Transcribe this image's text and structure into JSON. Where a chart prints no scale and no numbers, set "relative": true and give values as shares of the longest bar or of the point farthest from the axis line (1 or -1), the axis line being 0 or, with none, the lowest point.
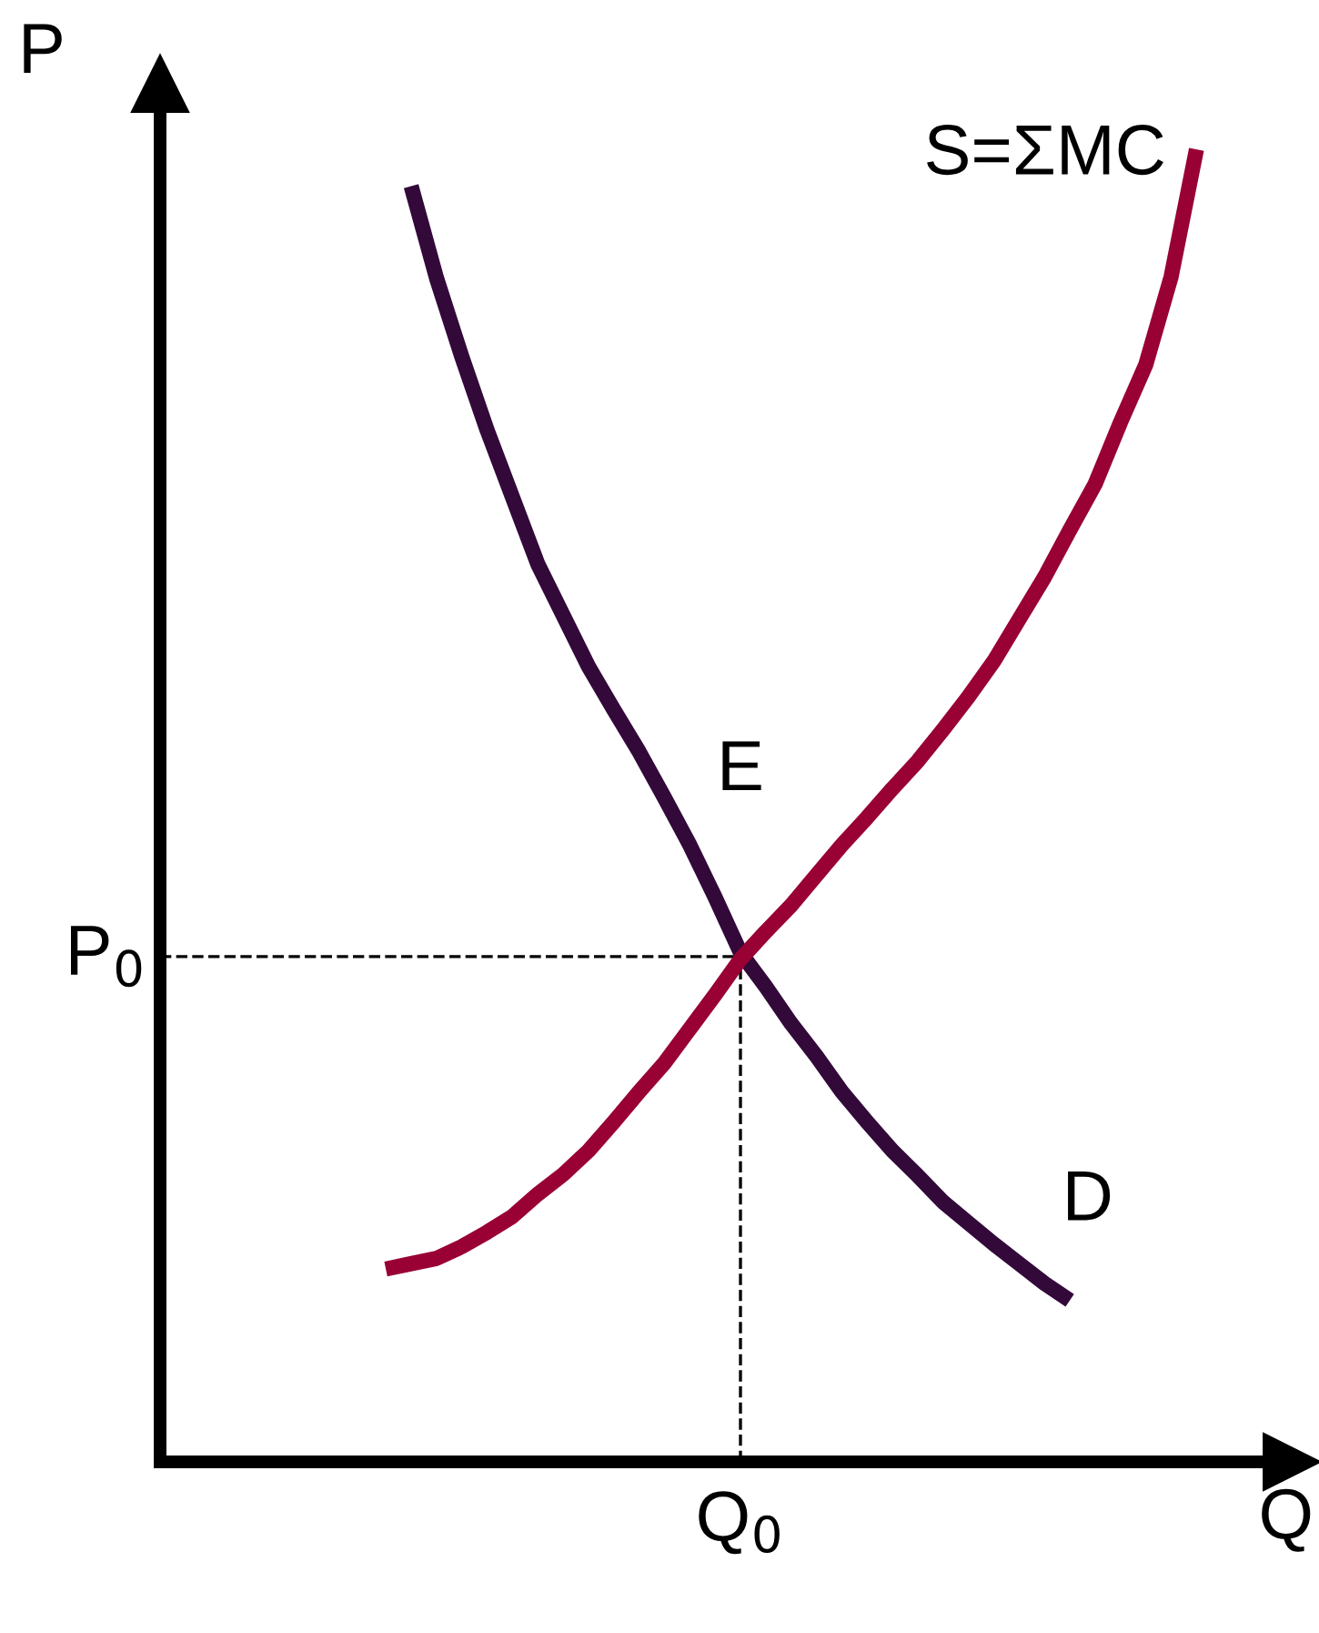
{
  "chart_data": {
    "type": "line",
    "relative": true,
    "xlabel": "Q",
    "ylabel": "P",
    "categories": [
      null,
      null,
      null,
      null,
      null,
      null,
      null,
      null,
      null,
      null,
      null,
      null,
      null,
      null,
      null,
      null,
      null,
      null,
      null,
      null,
      null,
      null,
      null,
      null,
      null,
      null,
      null,
      null,
      null,
      null,
      null,
      null,
      null
    ],
    "series": [
      {
        "name": "D",
        "color": "#33093a",
        "values": [
          null,
          0.972,
          0.902,
          0.842,
          0.786,
          0.735,
          0.684,
          0.645,
          0.606,
          0.573,
          0.541,
          0.506,
          0.47,
          0.43,
          0.388,
          0.362,
          0.334,
          0.309,
          0.282,
          0.259,
          0.237,
          0.218,
          0.198,
          0.182,
          0.166,
          0.151,
          0.136,
          0.123,
          null,
          null,
          null,
          null,
          null
        ]
      },
      {
        "name": "S=ΣMC",
        "color": "#990033",
        "values": [
          0.147,
          0.151,
          0.155,
          0.164,
          0.175,
          0.187,
          0.204,
          0.219,
          0.237,
          0.259,
          0.282,
          0.304,
          0.33,
          0.356,
          0.383,
          0.404,
          0.424,
          0.447,
          0.47,
          0.491,
          0.513,
          0.534,
          0.558,
          0.583,
          0.61,
          0.642,
          0.674,
          0.71,
          0.745,
          0.792,
          0.836,
          0.903,
          1.0
        ]
      }
    ],
    "ref_lines": [
      {
        "axis": "y",
        "value": 0.385,
        "label": "P$_{0}$",
        "line_style": "dashed",
        "color": "#000000"
      }
    ],
    "annotations": [
      "E",
      "Q$_{0}$"
    ],
    "legend": false,
    "marker": "none",
    "line_style": "solid"
  }
}
